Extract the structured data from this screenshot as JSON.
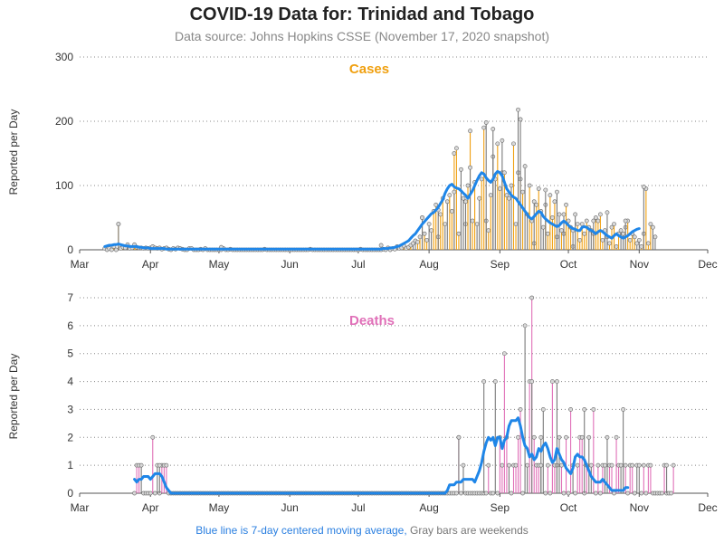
{
  "header": {
    "title": "COVID-19 Data for: Trinidad and Tobago",
    "subtitle": "Data source: Johns Hopkins CSSE (November 17, 2020 snapshot)"
  },
  "footer": {
    "moving_average_note": "Blue line is 7-day centered moving average,",
    "weekend_note": "Gray bars are weekends"
  },
  "colors": {
    "cases": "#f0a010",
    "deaths": "#e070b8",
    "moving_average": "#1f86e8",
    "weekend": "#7a7a7a",
    "grid": "#888888"
  },
  "chart_data": [
    {
      "type": "bar",
      "title": "Cases",
      "ylabel": "Reported per Day",
      "ylim": [
        0,
        300
      ],
      "yticks": [
        "0",
        "100",
        "200",
        "300"
      ],
      "grid": "horizontal dotted",
      "xlim": [
        "2020-03-01",
        "2020-12-01"
      ],
      "xticks": [
        "Mar",
        "Apr",
        "May",
        "Jun",
        "Jul",
        "Aug",
        "Sep",
        "Oct",
        "Nov",
        "Dec"
      ],
      "x_start": "2020-03-12",
      "x_end": "2020-11-16",
      "values": [
        2,
        0,
        2,
        0,
        5,
        0,
        40,
        2,
        4,
        3,
        8,
        2,
        3,
        8,
        4,
        3,
        3,
        2,
        3,
        2,
        3,
        5,
        3,
        2,
        3,
        1,
        2,
        3,
        1,
        0,
        2,
        1,
        3,
        2,
        1,
        0,
        0,
        2,
        2,
        0,
        0,
        0,
        1,
        0,
        2,
        0,
        0,
        0,
        0,
        0,
        0,
        0,
        2,
        0,
        0,
        1,
        0,
        0,
        0,
        0,
        0,
        0,
        0,
        0,
        0,
        0,
        0,
        0,
        0,
        0,
        1,
        0,
        0,
        0,
        0,
        0,
        0,
        0,
        0,
        0,
        0,
        0,
        0,
        0,
        0,
        0,
        0,
        0,
        0,
        0,
        1,
        0,
        0,
        0,
        0,
        0,
        0,
        0,
        0,
        0,
        0,
        0,
        0,
        0,
        0,
        0,
        0,
        0,
        0,
        0,
        0,
        0,
        1,
        0,
        0,
        0,
        0,
        0,
        0,
        0,
        0,
        0,
        1,
        0,
        3,
        0,
        2,
        1,
        5,
        2,
        3,
        6,
        2,
        4,
        7,
        10,
        14,
        12,
        20,
        50,
        25,
        15,
        40,
        30,
        60,
        70,
        20,
        55,
        80,
        40,
        75,
        85,
        60,
        150,
        158,
        25,
        125,
        80,
        40,
        100,
        185,
        45,
        105,
        40,
        80,
        110,
        190,
        45,
        30,
        85,
        145,
        110,
        165,
        95,
        120,
        120,
        85,
        80,
        100,
        165,
        40,
        120,
        110,
        90,
        130,
        55,
        100,
        45,
        10,
        70,
        95,
        60,
        35,
        70,
        25,
        85,
        50,
        75,
        20,
        55,
        30,
        25,
        70,
        45,
        35,
        5,
        55,
        40,
        15,
        40,
        25,
        45,
        35,
        30,
        25,
        50,
        45,
        55,
        15,
        30,
        20,
        10,
        35,
        40,
        5,
        25,
        30,
        25,
        35,
        45,
        15,
        25,
        20,
        10,
        15,
        5,
        25,
        95,
        10,
        40,
        35,
        20
      ],
      "markers": [
        {
          "day": 6,
          "value": 40
        },
        {
          "day": 51,
          "value": 4
        },
        {
          "day": 121,
          "value": 7
        },
        {
          "day": 139,
          "value": 50
        },
        {
          "day": 146,
          "value": 62
        },
        {
          "day": 153,
          "value": 90
        },
        {
          "day": 158,
          "value": 75
        },
        {
          "day": 160,
          "value": 128
        },
        {
          "day": 167,
          "value": 198
        },
        {
          "day": 170,
          "value": 188
        },
        {
          "day": 174,
          "value": 170
        },
        {
          "day": 181,
          "value": 218
        },
        {
          "day": 182,
          "value": 203
        },
        {
          "day": 188,
          "value": 75
        },
        {
          "day": 193,
          "value": 93
        },
        {
          "day": 198,
          "value": 90
        },
        {
          "day": 201,
          "value": 55
        },
        {
          "day": 205,
          "value": 30
        },
        {
          "day": 214,
          "value": 45
        },
        {
          "day": 220,
          "value": 58
        },
        {
          "day": 228,
          "value": 45
        },
        {
          "day": 236,
          "value": 98
        }
      ],
      "moving_average": [
        5,
        6,
        7,
        7,
        8,
        8,
        9,
        8,
        7,
        6,
        6,
        5,
        5,
        5,
        5,
        4,
        4,
        3,
        3,
        3,
        2,
        2,
        2,
        2,
        2,
        2,
        2,
        1,
        1,
        1,
        1,
        1,
        1,
        1,
        1,
        1,
        1,
        1,
        1,
        1,
        1,
        1,
        1,
        1,
        1,
        1,
        1,
        1,
        1,
        1,
        1,
        1,
        1,
        1,
        1,
        1,
        1,
        1,
        1,
        1,
        1,
        1,
        1,
        1,
        1,
        1,
        1,
        1,
        1,
        1,
        1,
        1,
        1,
        1,
        1,
        1,
        1,
        1,
        1,
        1,
        1,
        1,
        1,
        1,
        1,
        1,
        1,
        1,
        1,
        1,
        1,
        1,
        1,
        1,
        1,
        1,
        1,
        1,
        1,
        1,
        1,
        1,
        1,
        1,
        1,
        1,
        1,
        1,
        1,
        1,
        1,
        1,
        1,
        1,
        1,
        1,
        1,
        1,
        1,
        1,
        1,
        1,
        2,
        2,
        2,
        3,
        3,
        4,
        5,
        6,
        8,
        10,
        12,
        14,
        18,
        22,
        25,
        30,
        35,
        40,
        44,
        48,
        52,
        56,
        58,
        62,
        66,
        72,
        78,
        88,
        95,
        100,
        102,
        98,
        96,
        95,
        92,
        88,
        85,
        80,
        86,
        92,
        100,
        108,
        115,
        120,
        118,
        112,
        108,
        105,
        110,
        118,
        122,
        120,
        115,
        105,
        95,
        90,
        85,
        82,
        80,
        75,
        70,
        65,
        60,
        55,
        50,
        48,
        52,
        56,
        60,
        58,
        52,
        48,
        45,
        42,
        40,
        38,
        36,
        38,
        42,
        45,
        42,
        38,
        35,
        33,
        32,
        30,
        30,
        35,
        36,
        35,
        32,
        30,
        28,
        25,
        28,
        30,
        28,
        25,
        22,
        20,
        18,
        22,
        25,
        22,
        20,
        18,
        20,
        22,
        25,
        28,
        30,
        32,
        33
      ]
    },
    {
      "type": "bar",
      "title": "Deaths",
      "ylabel": "Reported per Day",
      "ylim": [
        0,
        7
      ],
      "yticks": [
        "0",
        "1",
        "2",
        "3",
        "4",
        "5",
        "6",
        "7"
      ],
      "grid": "horizontal dotted",
      "xlim": [
        "2020-03-01",
        "2020-12-01"
      ],
      "xticks": [
        "Mar",
        "Apr",
        "May",
        "Jun",
        "Jul",
        "Aug",
        "Sep",
        "Oct",
        "Nov",
        "Dec"
      ],
      "x_start": "2020-03-25",
      "x_end": "2020-11-18",
      "values": [
        0,
        1,
        1,
        1,
        0,
        0,
        0,
        0,
        2,
        0,
        1,
        0,
        1,
        1,
        1,
        0,
        0,
        0,
        0,
        0,
        0,
        0,
        0,
        0,
        0,
        0,
        0,
        0,
        0,
        0,
        0,
        0,
        0,
        0,
        0,
        0,
        0,
        0,
        0,
        0,
        0,
        0,
        0,
        0,
        0,
        0,
        0,
        0,
        0,
        0,
        0,
        0,
        0,
        0,
        0,
        0,
        0,
        0,
        0,
        0,
        0,
        0,
        0,
        0,
        0,
        0,
        0,
        0,
        0,
        0,
        0,
        0,
        0,
        0,
        0,
        0,
        0,
        0,
        0,
        0,
        0,
        0,
        0,
        0,
        0,
        0,
        0,
        0,
        0,
        0,
        0,
        0,
        0,
        0,
        0,
        0,
        0,
        0,
        0,
        0,
        0,
        0,
        0,
        0,
        0,
        0,
        0,
        0,
        0,
        0,
        0,
        0,
        0,
        0,
        0,
        0,
        0,
        0,
        0,
        0,
        0,
        0,
        0,
        0,
        0,
        0,
        0,
        0,
        0,
        0,
        0,
        0,
        0,
        0,
        0,
        0,
        0,
        0,
        0,
        0,
        0,
        0,
        2,
        0,
        1,
        0,
        0,
        0,
        0,
        0,
        0,
        0,
        0,
        0,
        0,
        1,
        0,
        0,
        4,
        0,
        2,
        1,
        5,
        2,
        1,
        0,
        1,
        1,
        2,
        3,
        0,
        6,
        1,
        4,
        7,
        2,
        1,
        1,
        2,
        3,
        0,
        1,
        0,
        4,
        1,
        1,
        2,
        1,
        0,
        2,
        0,
        3,
        1,
        0,
        1,
        2,
        2,
        0,
        1,
        2,
        1,
        3,
        0,
        1,
        0,
        1,
        1,
        2,
        1,
        1,
        0,
        2,
        1,
        1,
        3,
        1,
        0,
        1,
        1,
        0,
        1,
        1,
        0,
        1,
        0,
        1,
        1,
        0,
        0,
        0,
        0,
        0,
        1,
        0,
        0,
        0,
        1
      ],
      "markers": [
        {
          "day": 11,
          "value": 1
        },
        {
          "day": 142,
          "value": 2
        },
        {
          "day": 153,
          "value": 4
        },
        {
          "day": 174,
          "value": 4
        },
        {
          "day": 178,
          "value": 1
        },
        {
          "day": 185,
          "value": 4
        },
        {
          "day": 197,
          "value": 3
        },
        {
          "day": 233,
          "value": 1
        }
      ],
      "moving_average": [
        0.5,
        0.4,
        0.5,
        0.5,
        0.6,
        0.6,
        0.6,
        0.5,
        0.6,
        0.7,
        0.7,
        0.7,
        0.6,
        0.4,
        0.2,
        0.1,
        0,
        0,
        0,
        0,
        0,
        0,
        0,
        0,
        0,
        0,
        0,
        0,
        0,
        0,
        0,
        0,
        0,
        0,
        0,
        0,
        0,
        0,
        0,
        0,
        0,
        0,
        0,
        0,
        0,
        0,
        0,
        0,
        0,
        0,
        0,
        0,
        0,
        0,
        0,
        0,
        0,
        0,
        0,
        0,
        0,
        0,
        0,
        0,
        0,
        0,
        0,
        0,
        0,
        0,
        0,
        0,
        0,
        0,
        0,
        0,
        0,
        0,
        0,
        0,
        0,
        0,
        0,
        0,
        0,
        0,
        0,
        0,
        0,
        0,
        0,
        0,
        0,
        0,
        0,
        0,
        0,
        0,
        0,
        0,
        0,
        0,
        0,
        0,
        0,
        0,
        0,
        0,
        0,
        0,
        0,
        0,
        0,
        0,
        0,
        0,
        0,
        0,
        0,
        0,
        0,
        0,
        0,
        0,
        0,
        0,
        0,
        0,
        0,
        0,
        0,
        0,
        0,
        0,
        0,
        0,
        0,
        0.1,
        0.3,
        0.3,
        0.3,
        0.4,
        0.4,
        0.4,
        0.5,
        0.5,
        0.5,
        0.5,
        0.5,
        0.4,
        0.6,
        0.8,
        1.1,
        1.5,
        1.8,
        2.0,
        1.9,
        2.0,
        1.7,
        2.0,
        2.0,
        1.6,
        1.9,
        2.0,
        2.4,
        2.6,
        2.6,
        2.6,
        2.7,
        2.4,
        2.0,
        1.7,
        1.6,
        1.3,
        1.4,
        1.2,
        1.3,
        1.6,
        1.5,
        1.7,
        1.8,
        1.6,
        1.3,
        1.1,
        1.2,
        1.6,
        1.4,
        1.2,
        1.1,
        0.9,
        0.8,
        0.7,
        0.9,
        1.3,
        1.4,
        1.3,
        1.3,
        1.2,
        1.0,
        0.8,
        0.6,
        0.5,
        0.4,
        0.4,
        0.4,
        0.5,
        0.4,
        0.3,
        0.2,
        0.1,
        0.1,
        0.1,
        0.1,
        0.1,
        0.1,
        0.2,
        0.2
      ]
    }
  ]
}
